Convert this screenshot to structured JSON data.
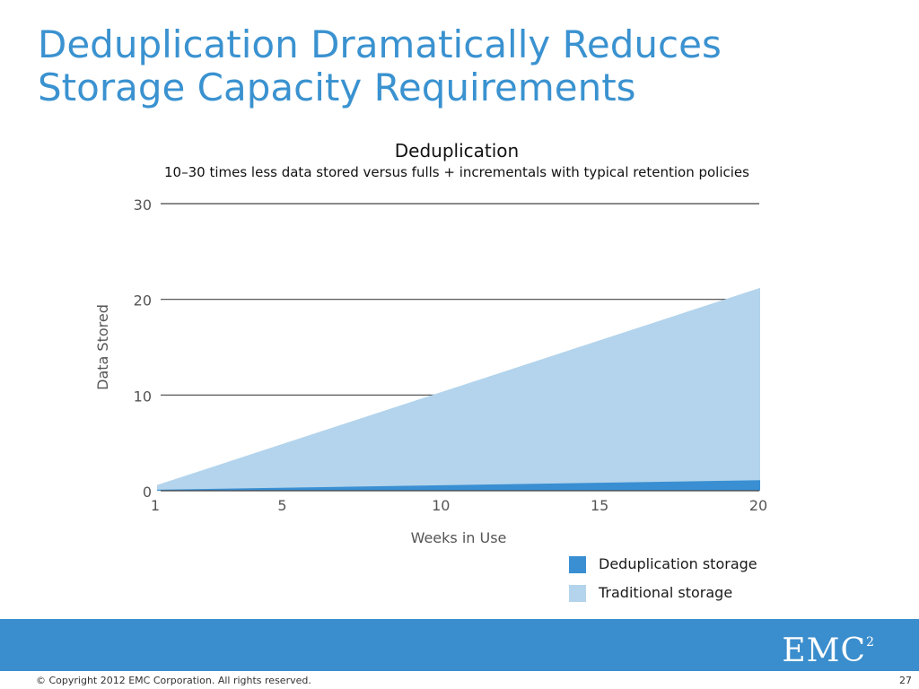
{
  "slide": {
    "title_lines": [
      "Deduplication Dramatically Reduces",
      "Storage Capacity Requirements"
    ],
    "copyright": "© Copyright 2012 EMC Corporation. All rights reserved.",
    "page_number": "27",
    "logo_text": "EMC",
    "logo_superscript": "2"
  },
  "colors": {
    "title": "#3a92d0",
    "traditional": "#b3d4ec",
    "deduplication": "#3a8fd3",
    "footer_band": "#3b8ecd"
  },
  "chart_data": {
    "type": "area",
    "title": "Deduplication",
    "subtitle": "10–30 times less data stored versus fulls + incrementals with typical retention policies",
    "xlabel": "Weeks in Use",
    "ylabel": "Data Stored",
    "x": [
      1,
      20
    ],
    "xticks": [
      1,
      5,
      10,
      15,
      20
    ],
    "yticks": [
      0,
      10,
      20,
      30
    ],
    "xlim": [
      1,
      20
    ],
    "ylim": [
      0,
      30
    ],
    "grid": "horizontal",
    "legend_position": "bottom-right",
    "series": [
      {
        "name": "Traditional storage",
        "values": [
          0.6,
          21.2
        ],
        "color": "#b3d4ec"
      },
      {
        "name": "Deduplication storage",
        "values": [
          0.1,
          1.1
        ],
        "color": "#3a8fd3"
      }
    ],
    "legend": [
      {
        "label": "Deduplication storage",
        "color": "#3a8fd3"
      },
      {
        "label": "Traditional storage",
        "color": "#b3d4ec"
      }
    ]
  }
}
